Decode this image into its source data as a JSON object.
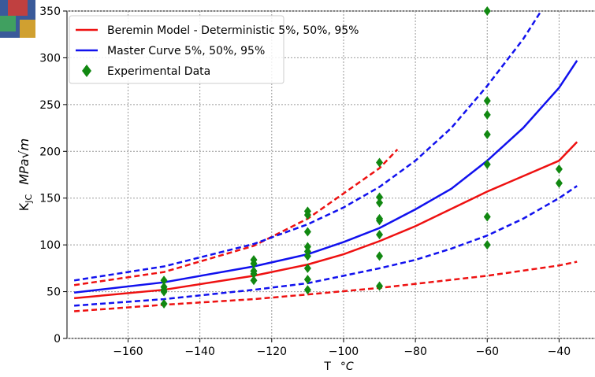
{
  "chart_data": {
    "type": "line",
    "ylabel": "K",
    "ylabel_sub": "JC",
    "ylabel_unit": "MPa√m",
    "xlabel": "T",
    "xlabel_unit": "°C",
    "xlim": [
      -177,
      -30
    ],
    "xticks": [
      {
        "value": -160,
        "label": "−160"
      },
      {
        "value": -140,
        "label": "−140"
      },
      {
        "value": -120,
        "label": "−120"
      },
      {
        "value": -100,
        "label": "−100"
      },
      {
        "value": -80,
        "label": "−80"
      },
      {
        "value": -60,
        "label": "−60"
      },
      {
        "value": -40,
        "label": "−40"
      }
    ],
    "ylim": [
      0,
      350
    ],
    "yticks": [
      0,
      50,
      100,
      150,
      200,
      250,
      300,
      350
    ],
    "grid": true,
    "legend": "upper left",
    "series": [
      {
        "name": "Beremin Model - Deterministic 5%, 50%, 95%",
        "color": "#ee1111",
        "marker": "line",
        "curves": [
          {
            "dashed": true,
            "x": [
              -175,
              -150,
              -125,
              -110,
              -90,
              -60,
              -40,
              -35
            ],
            "values": [
              29,
              36,
              42,
              47,
              54,
              67,
              78,
              82
            ]
          },
          {
            "dashed": false,
            "x": [
              -175,
              -150,
              -125,
              -110,
              -100,
              -90,
              -80,
              -60,
              -40,
              -35
            ],
            "values": [
              43,
              52,
              67,
              79,
              90,
              104,
              120,
              157,
              190,
              210
            ]
          },
          {
            "dashed": true,
            "x": [
              -175,
              -150,
              -125,
              -110,
              -100,
              -90,
              -85
            ],
            "values": [
              57,
              71,
              99,
              128,
              155,
              182,
              202
            ]
          }
        ]
      },
      {
        "name": "Master Curve 5%, 50%, 95%",
        "color": "#1111ee",
        "marker": "line",
        "curves": [
          {
            "dashed": true,
            "x": [
              -175,
              -150,
              -125,
              -110,
              -100,
              -90,
              -80,
              -70,
              -60,
              -50,
              -40,
              -35
            ],
            "values": [
              35,
              42,
              52,
              59,
              67,
              75,
              84,
              96,
              110,
              128,
              150,
              163
            ]
          },
          {
            "dashed": false,
            "x": [
              -175,
              -150,
              -125,
              -110,
              -100,
              -90,
              -80,
              -70,
              -60,
              -50,
              -40,
              -35
            ],
            "values": [
              49,
              60,
              77,
              90,
              103,
              118,
              138,
              160,
              190,
              225,
              268,
              297
            ]
          },
          {
            "dashed": true,
            "x": [
              -175,
              -150,
              -125,
              -110,
              -100,
              -90,
              -80,
              -70,
              -60,
              -50,
              -45
            ],
            "values": [
              62,
              77,
              101,
              122,
              140,
              162,
              190,
              225,
              270,
              320,
              350
            ]
          }
        ]
      },
      {
        "name": "Experimental Data",
        "color": "#118811",
        "marker": "diamond",
        "x": [
          -150,
          -150,
          -150,
          -150,
          -150,
          -125,
          -125,
          -125,
          -125,
          -125,
          -110,
          -110,
          -110,
          -110,
          -110,
          -110,
          -110,
          -110,
          -110,
          -90,
          -90,
          -90,
          -90,
          -90,
          -90,
          -90,
          -90,
          -60,
          -60,
          -60,
          -60,
          -60,
          -60,
          -60,
          -40,
          -40
        ],
        "values": [
          62,
          55,
          52,
          50,
          37,
          84,
          80,
          72,
          69,
          62,
          136,
          132,
          114,
          98,
          93,
          88,
          75,
          63,
          52,
          188,
          151,
          145,
          128,
          126,
          111,
          88,
          56,
          350,
          254,
          239,
          218,
          186,
          130,
          100,
          181,
          166
        ]
      }
    ]
  }
}
